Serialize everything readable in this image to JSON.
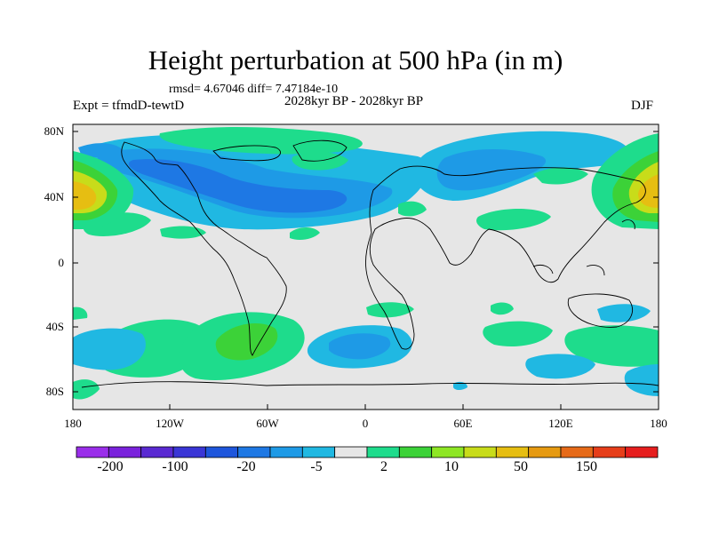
{
  "title": "Height perturbation at 500 hPa (in m)",
  "rmsd_line": "rmsd= 4.67046 diff= 7.47184e-10",
  "period_line": "2028kyr BP - 2028kyr BP",
  "expt_line": "Expt = tfmdD-tewtD",
  "season": "DJF",
  "lat_labels": [
    "80N",
    "40N",
    "0",
    "40S",
    "80S"
  ],
  "lon_labels": [
    "180",
    "120W",
    "60W",
    "0",
    "60E",
    "120E",
    "180"
  ],
  "colorbar": {
    "colors": [
      "#9a2eea",
      "#7a22dc",
      "#5a2ad2",
      "#3a36d6",
      "#1e56dc",
      "#1e78e4",
      "#1e9ae6",
      "#20b8e2",
      "#e6e6e6",
      "#1edc8c",
      "#3cd238",
      "#8ee624",
      "#c8dc1a",
      "#e6be12",
      "#e69a12",
      "#e66a18",
      "#e63e1a",
      "#e61e1e"
    ],
    "labels": [
      "-200",
      "-100",
      "-20",
      "-5",
      "2",
      "10",
      "50",
      "150"
    ]
  },
  "colors": {
    "neutral": "#e6e6e6",
    "blue_deep": "#1e78e4",
    "blue_mid": "#1e9ae6",
    "blue_light": "#20b8e2",
    "green_light": "#1edc8c",
    "green": "#3cd238",
    "yellow": "#c8dc1a",
    "orange": "#e6be12"
  }
}
